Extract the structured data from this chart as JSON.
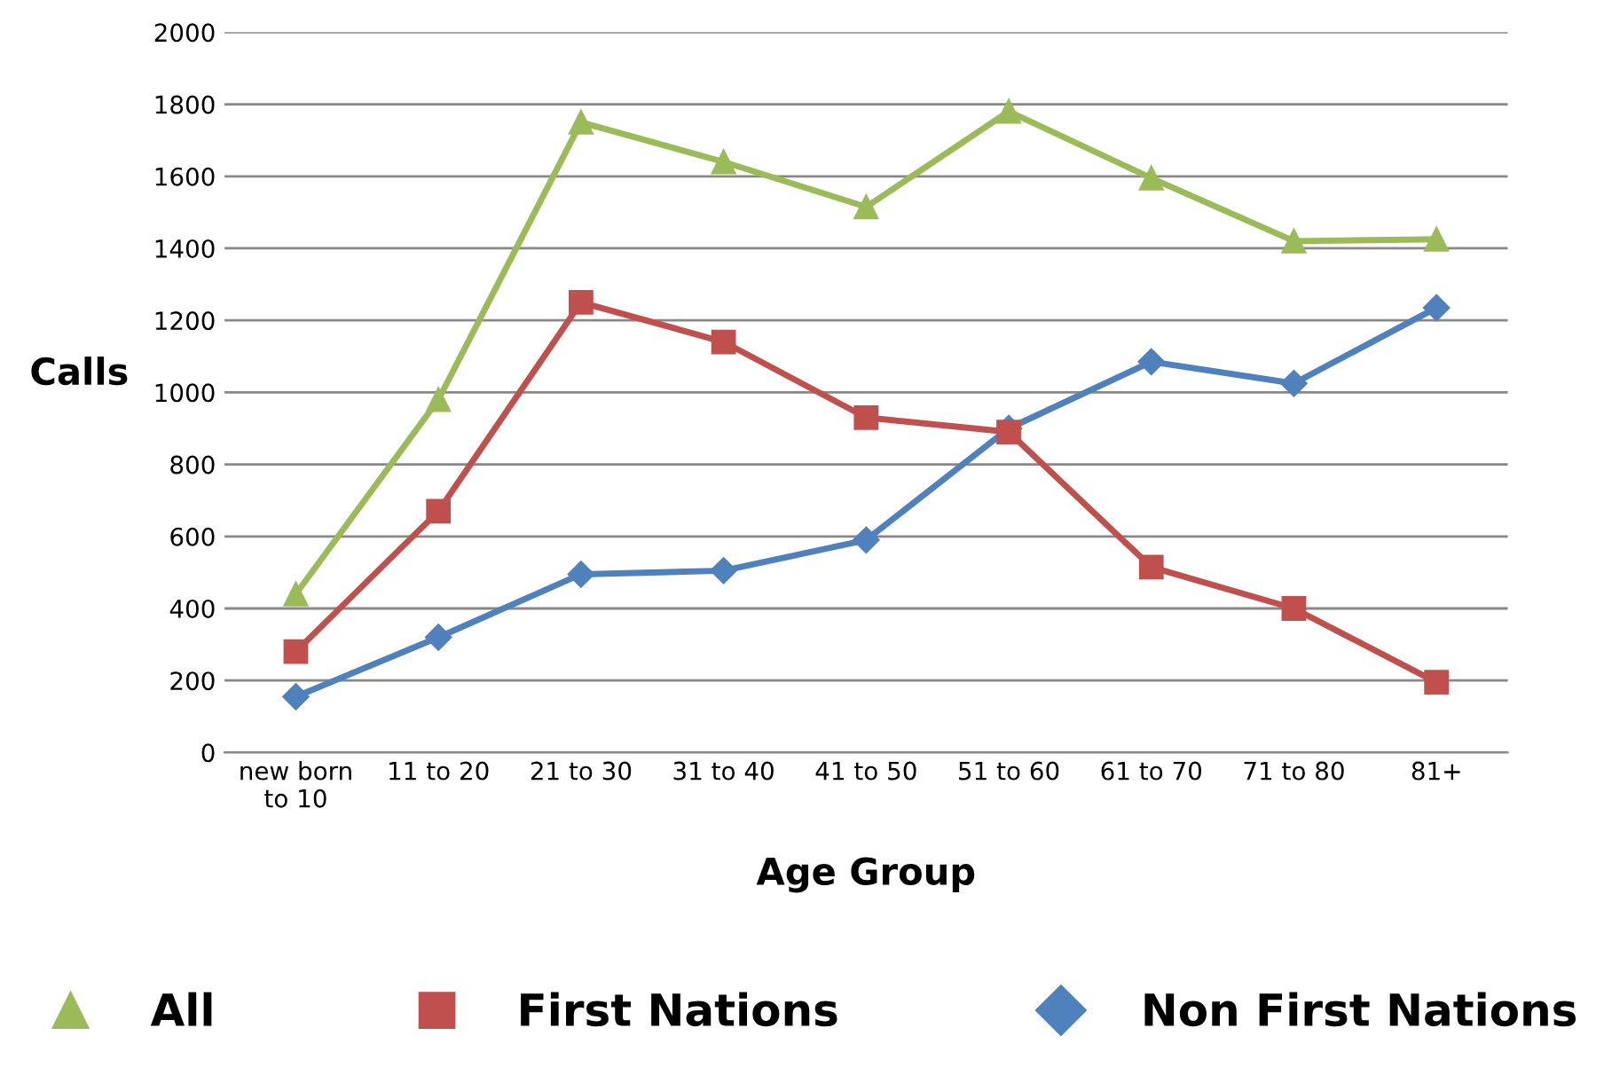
{
  "chart_data": {
    "type": "line",
    "xlabel": "Age Group",
    "ylabel": "Calls",
    "categories": [
      "new born\nto 10",
      "11 to 20",
      "21 to 30",
      "31 to 40",
      "41 to 50",
      "51 to 60",
      "61 to 70",
      "71 to 80",
      "81+"
    ],
    "series": [
      {
        "name": "All",
        "color": "#9bbb59",
        "marker": "triangle",
        "values": [
          440,
          980,
          1750,
          1640,
          1515,
          1780,
          1595,
          1420,
          1425
        ]
      },
      {
        "name": "First Nations",
        "color": "#c0504d",
        "marker": "square",
        "values": [
          280,
          670,
          1250,
          1140,
          930,
          890,
          515,
          400,
          195
        ]
      },
      {
        "name": "Non First Nations",
        "color": "#4f81bd",
        "marker": "diamond",
        "values": [
          155,
          320,
          495,
          505,
          590,
          900,
          1085,
          1025,
          1235
        ]
      }
    ],
    "ylim": [
      0,
      2000
    ],
    "yticks": [
      0,
      200,
      400,
      600,
      800,
      1000,
      1200,
      1400,
      1600,
      1800,
      2000
    ],
    "grid": "y",
    "legend": "bottom"
  }
}
